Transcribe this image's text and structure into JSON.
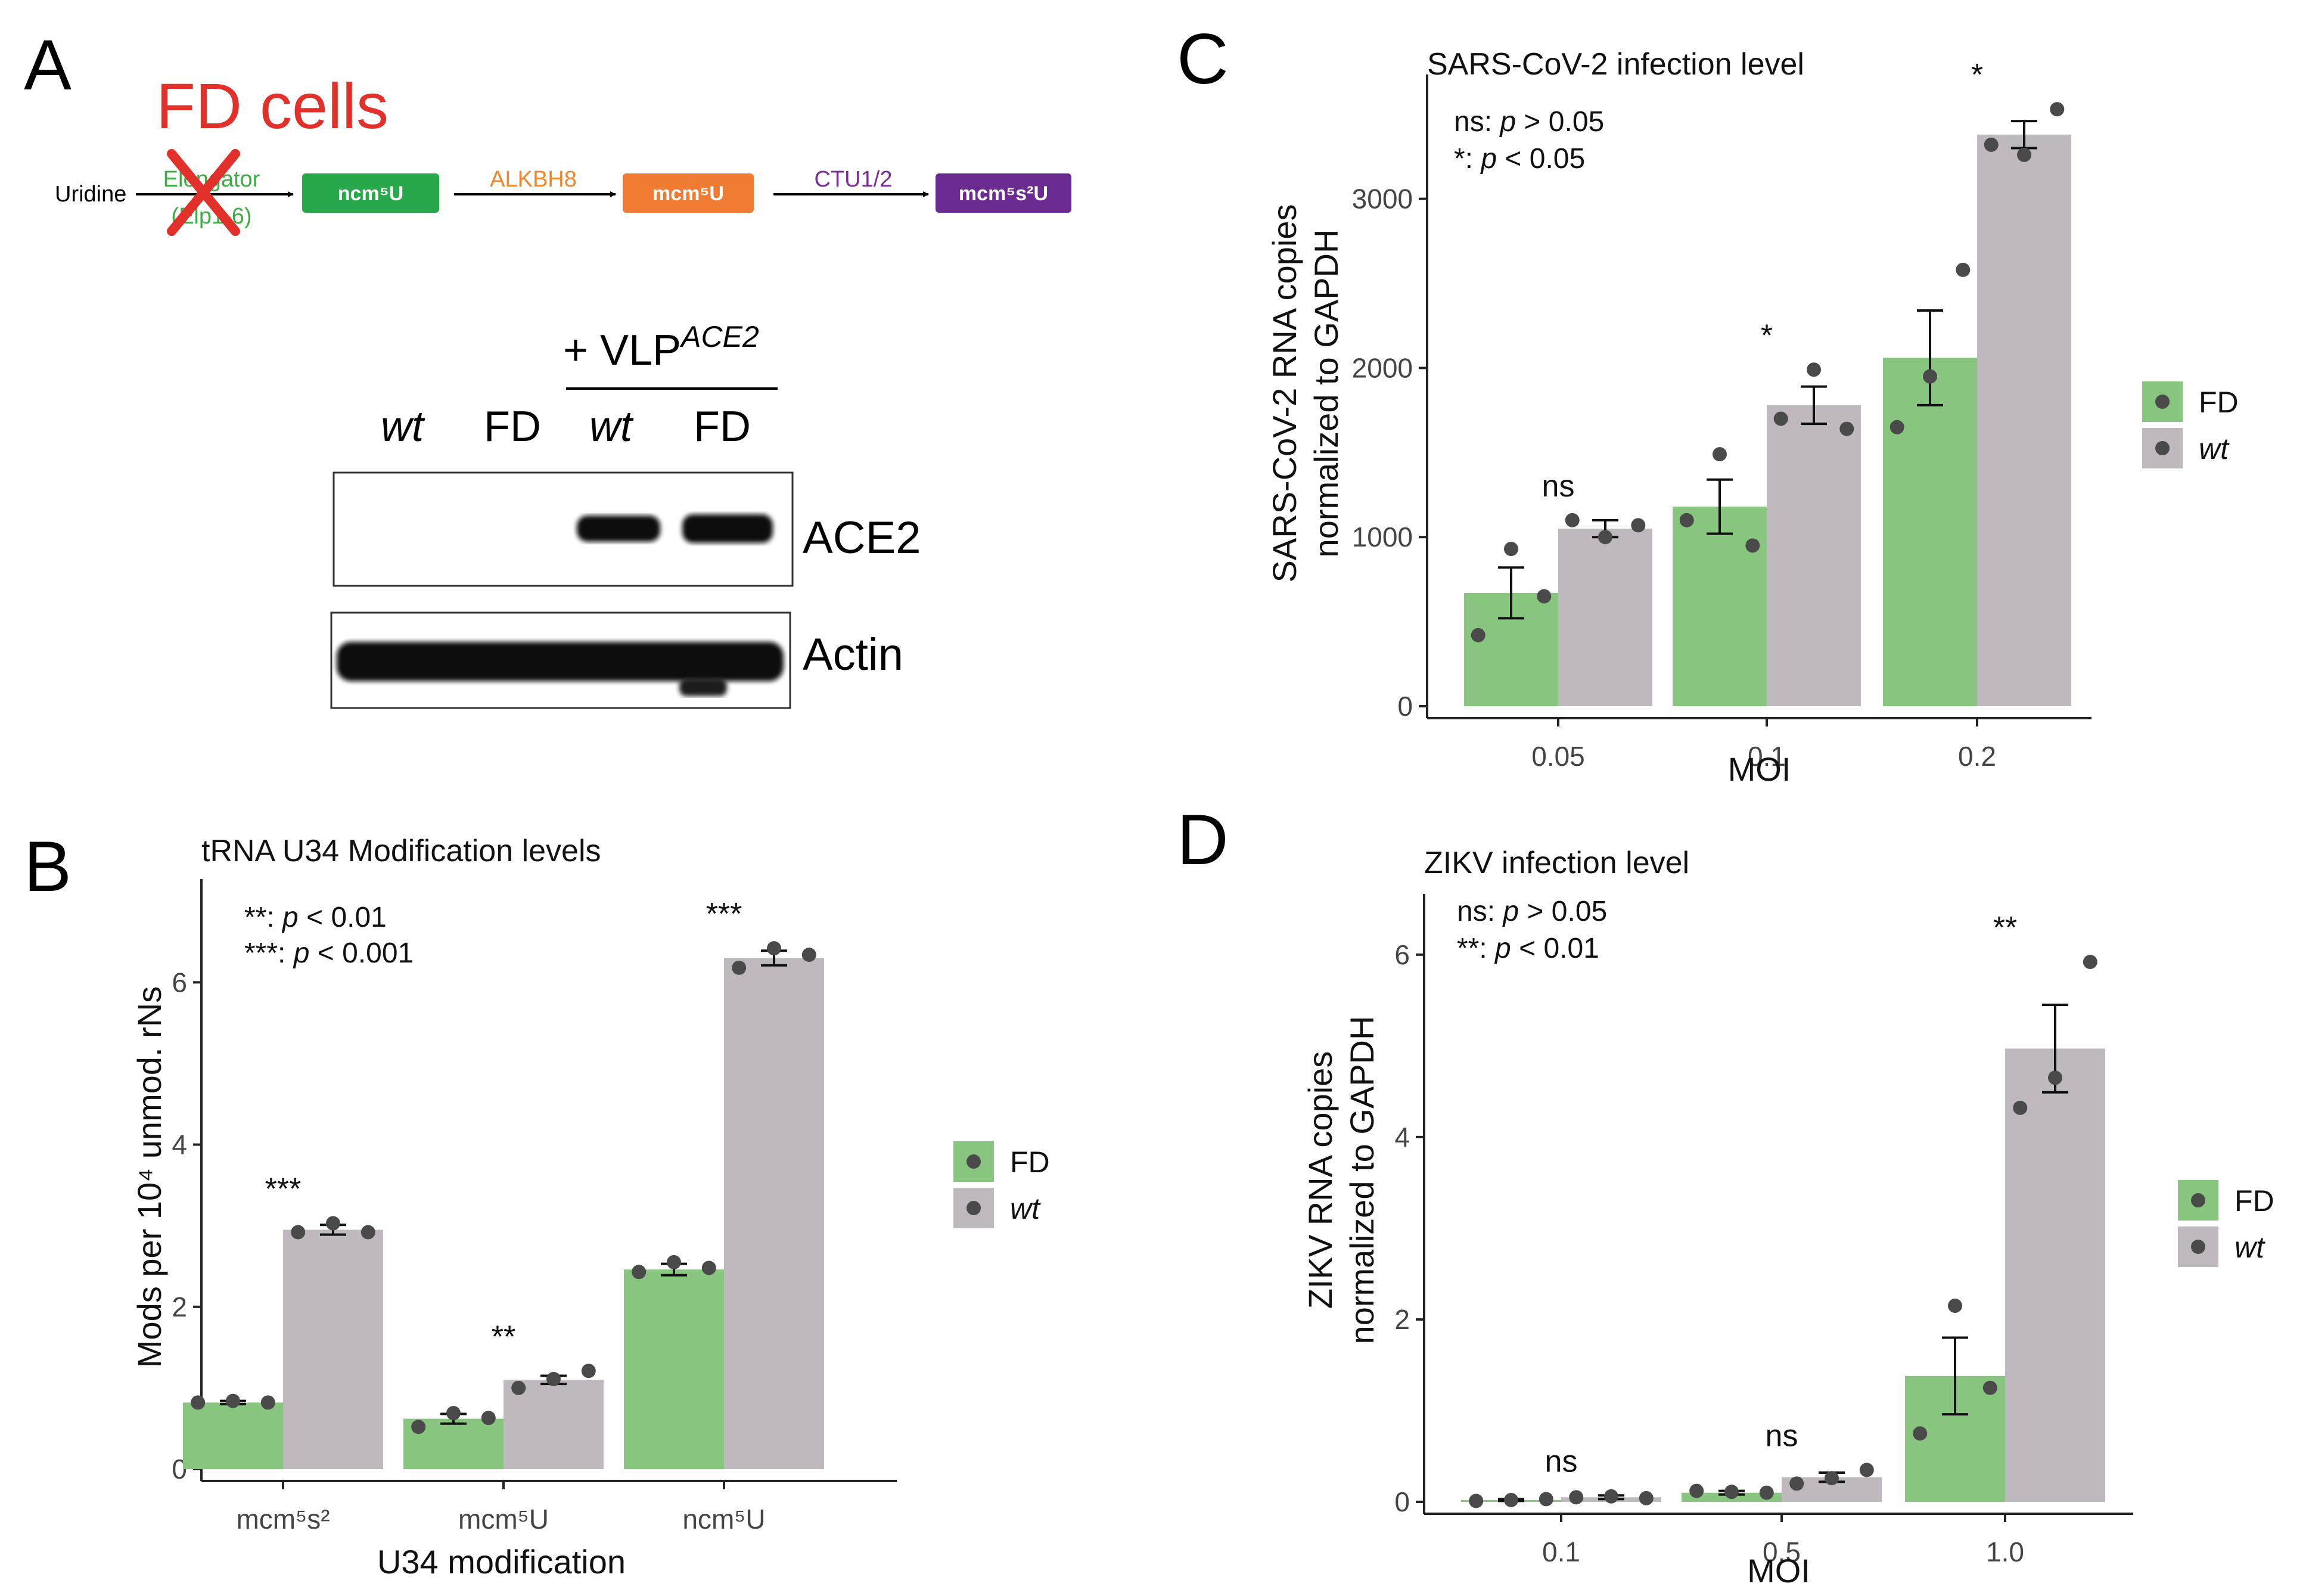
{
  "colors": {
    "fd": "#88c680",
    "wt": "#c0b8bf",
    "point": "#4a4a4a",
    "red": "#e2302b",
    "elongator": "#3fad46",
    "alkbh8": "#f2852e",
    "ctu": "#7b2d95",
    "box_ncm": "#27a84a",
    "box_mcm": "#f07b32",
    "box_mcms2": "#6a2c91"
  },
  "panelA": {
    "letter": "A",
    "fd_cells": "FD cells",
    "uridine": "Uridine",
    "elongator": "Elongator",
    "elp": "(Elp1-6)",
    "ncm": "ncm⁵U",
    "alkbh8": "ALKBH8",
    "mcm": "mcm⁵U",
    "ctu": "CTU1/2",
    "mcms2": "mcm⁵s²U",
    "vlp_prefix": "+ VLP",
    "vlp_sup": "ACE2",
    "lanes": [
      "wt",
      "FD",
      "wt",
      "FD"
    ],
    "blot1_label": "ACE2",
    "blot2_label": "Actin"
  },
  "chart_data": [
    {
      "panel": "B",
      "type": "bar",
      "title": "tRNA U34 Modification levels",
      "categories": [
        "mcm⁵s²",
        "mcm⁵U",
        "ncm⁵U"
      ],
      "xlabel": "U34 modification",
      "ylabel": "Mods per 10⁴ unmod. rNs",
      "ylim": [
        0,
        7.2
      ],
      "yticks": [
        0,
        2,
        4,
        6
      ],
      "series": [
        {
          "name": "FD",
          "values": [
            0.82,
            0.62,
            2.46
          ],
          "sem": [
            0.02,
            0.06,
            0.07
          ],
          "points": [
            [
              0.82,
              0.84,
              0.82
            ],
            [
              0.52,
              0.69,
              0.63
            ],
            [
              2.43,
              2.55,
              2.48
            ]
          ]
        },
        {
          "name": "wt",
          "values": [
            2.95,
            1.1,
            6.3
          ],
          "sem": [
            0.06,
            0.05,
            0.09
          ],
          "points": [
            [
              2.92,
              3.03,
              2.92
            ],
            [
              1.0,
              1.11,
              1.21
            ],
            [
              6.18,
              6.42,
              6.34
            ]
          ]
        }
      ],
      "significance": [
        "***",
        "**",
        "***"
      ],
      "pvalue_legend": [
        {
          "key": "**:",
          "text": "p < 0.01"
        },
        {
          "key": "***:",
          "text": "p < 0.001"
        }
      ],
      "legend": [
        "FD",
        "wt"
      ]
    },
    {
      "panel": "C",
      "type": "bar",
      "title": "SARS-CoV-2 infection level",
      "categories": [
        "0.05",
        "0.1",
        "0.2"
      ],
      "xlabel": "MOI",
      "ylabel": [
        "SARS-CoV-2 RNA copies",
        "normalized to GAPDH"
      ],
      "ylim": [
        0,
        3700
      ],
      "yticks": [
        0,
        1000,
        2000,
        3000
      ],
      "series": [
        {
          "name": "FD",
          "values": [
            670,
            1180,
            2060
          ],
          "sem": [
            150,
            160,
            280
          ],
          "points": [
            [
              420,
              930,
              650
            ],
            [
              1100,
              1490,
              950
            ],
            [
              1650,
              1950,
              2580
            ]
          ]
        },
        {
          "name": "wt",
          "values": [
            1050,
            1780,
            3380
          ],
          "sem": [
            50,
            110,
            80
          ],
          "points": [
            [
              1100,
              1000,
              1070
            ],
            [
              1700,
              1990,
              1640
            ],
            [
              3320,
              3260,
              3530
            ]
          ]
        }
      ],
      "significance": [
        "ns",
        "*",
        "*"
      ],
      "pvalue_legend": [
        {
          "key": "ns:",
          "text": "p > 0.05"
        },
        {
          "key": "*:",
          "text": "p < 0.05"
        }
      ],
      "legend": [
        "FD",
        "wt"
      ]
    },
    {
      "panel": "D",
      "type": "bar",
      "title": "ZIKV infection level",
      "categories": [
        "0.1",
        "0.5",
        "1.0"
      ],
      "xlabel": "MOI",
      "ylabel": [
        "ZIKV RNA copies",
        "normalized to GAPDH"
      ],
      "ylim": [
        0,
        6.6
      ],
      "yticks": [
        0,
        2,
        4,
        6
      ],
      "series": [
        {
          "name": "FD",
          "values": [
            0.02,
            0.1,
            1.38
          ],
          "sem": [
            0.01,
            0.02,
            0.42
          ],
          "points": [
            [
              0.01,
              0.02,
              0.03
            ],
            [
              0.12,
              0.11,
              0.1
            ],
            [
              0.75,
              2.15,
              1.25
            ]
          ]
        },
        {
          "name": "wt",
          "values": [
            0.05,
            0.27,
            4.97
          ],
          "sem": [
            0.02,
            0.05,
            0.48
          ],
          "points": [
            [
              0.05,
              0.06,
              0.04
            ],
            [
              0.2,
              0.26,
              0.35
            ],
            [
              4.32,
              4.65,
              5.92
            ]
          ]
        }
      ],
      "significance": [
        "ns",
        "ns",
        "**"
      ],
      "pvalue_legend": [
        {
          "key": "ns:",
          "text": "p > 0.05"
        },
        {
          "key": "**:",
          "text": "p < 0.01"
        }
      ],
      "legend": [
        "FD",
        "wt"
      ]
    }
  ]
}
